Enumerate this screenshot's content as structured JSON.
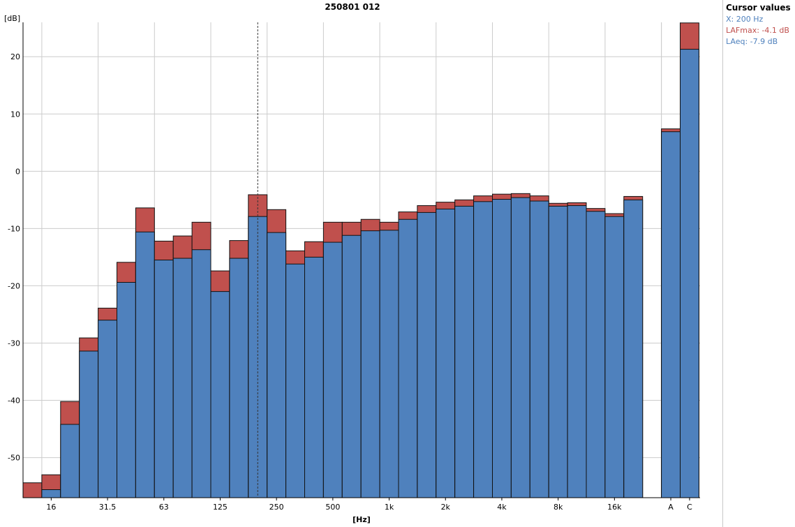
{
  "chart_data": {
    "type": "bar",
    "title": "250801 012",
    "ylabel": "[dB]",
    "xlabel": "[Hz]",
    "ylim": [
      -57,
      26
    ],
    "y_ticks": [
      -50,
      -40,
      -30,
      -20,
      -10,
      0,
      10,
      20
    ],
    "grid": true,
    "x_tick_labels": [
      {
        "label": "16",
        "band": "16"
      },
      {
        "label": "31.5",
        "band": "31.5"
      },
      {
        "label": "63",
        "band": "63"
      },
      {
        "label": "125",
        "band": "125"
      },
      {
        "label": "250",
        "band": "250"
      },
      {
        "label": "500",
        "band": "500"
      },
      {
        "label": "1k",
        "band": "1k"
      },
      {
        "label": "2k",
        "band": "2k"
      },
      {
        "label": "4k",
        "band": "4k"
      },
      {
        "label": "8k",
        "band": "8k"
      },
      {
        "label": "16k",
        "band": "16k"
      },
      {
        "label": "A",
        "band": "A"
      },
      {
        "label": "C",
        "band": "C"
      }
    ],
    "bands": [
      "12.5",
      "16",
      "20",
      "25",
      "31.5",
      "40",
      "50",
      "63",
      "80",
      "100",
      "125",
      "160",
      "200",
      "250",
      "315",
      "400",
      "500",
      "630",
      "800",
      "1k",
      "1.25k",
      "1.6k",
      "2k",
      "2.5k",
      "3.15k",
      "4k",
      "5k",
      "6.3k",
      "8k",
      "10k",
      "12.5k",
      "16k",
      "20k",
      "A",
      "C"
    ],
    "series": [
      {
        "name": "LAFmax",
        "color": "#c0504d",
        "values": [
          -54.4,
          -53.0,
          -40.2,
          -29.1,
          -23.9,
          -15.9,
          -6.4,
          -12.2,
          -11.3,
          -8.9,
          -17.4,
          -12.1,
          -4.1,
          -6.7,
          -13.9,
          -12.3,
          -8.9,
          -8.9,
          -8.4,
          -8.9,
          -7.1,
          -6.0,
          -5.4,
          -5.0,
          -4.3,
          -4.0,
          -3.9,
          -4.3,
          -5.6,
          -5.5,
          -6.5,
          -7.4,
          -4.4,
          7.4,
          25.9
        ]
      },
      {
        "name": "LAeq",
        "color": "#4f81bd",
        "values": [
          null,
          -55.6,
          -44.2,
          -31.4,
          -26.0,
          -19.4,
          -10.6,
          -15.5,
          -15.2,
          -13.7,
          -21.0,
          -15.2,
          -7.9,
          -10.7,
          -16.2,
          -15.0,
          -12.4,
          -11.2,
          -10.4,
          -10.3,
          -8.4,
          -7.2,
          -6.6,
          -6.1,
          -5.3,
          -4.9,
          -4.6,
          -5.2,
          -6.1,
          -6.0,
          -7.0,
          -7.9,
          -5.0,
          6.9,
          21.3
        ]
      }
    ],
    "cursor": {
      "x": "200"
    }
  },
  "cursor_panel": {
    "title": "Cursor values",
    "line1": "X: 200 Hz",
    "line2": "LAFmax: -4.1 dB",
    "line3": "LAeq: -7.9 dB",
    "colors": {
      "x": "#4f81bd",
      "lafmax": "#c0504d",
      "laeq": "#4f81bd"
    }
  }
}
